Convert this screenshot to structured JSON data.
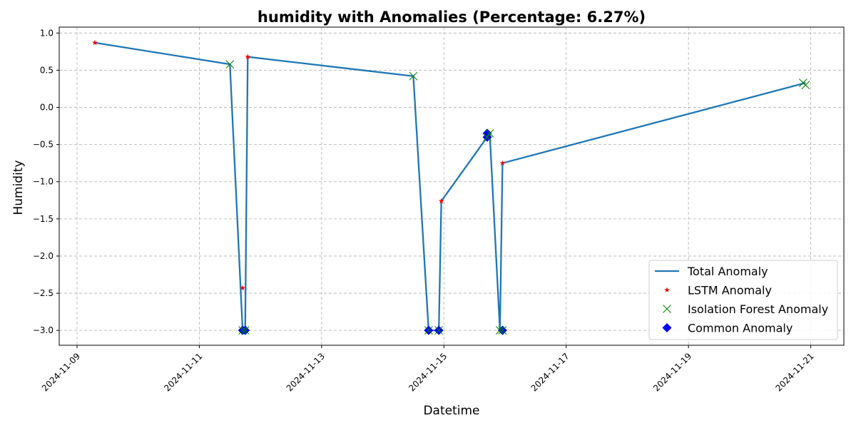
{
  "chart_data": {
    "type": "line",
    "title": "humidity with Anomalies (Percentage: 6.27%)",
    "xlabel": "Datetime",
    "ylabel": "Humidity",
    "xlim": [
      "2024-11-08T17:00",
      "2024-11-21T13:00"
    ],
    "ylim": [
      -3.2,
      1.08
    ],
    "x_ticks": [
      "2024-11-09",
      "2024-11-11",
      "2024-11-13",
      "2024-11-15",
      "2024-11-17",
      "2024-11-19",
      "2024-11-21"
    ],
    "y_ticks": [
      1.0,
      0.5,
      0.0,
      -0.5,
      -1.0,
      -1.5,
      -2.0,
      -2.5,
      -3.0
    ],
    "y_tick_labels": [
      "1.0",
      "0.5",
      "0.0",
      "−0.5",
      "−1.0",
      "−1.5",
      "−2.0",
      "−2.5",
      "−3.0"
    ],
    "grid": true,
    "legend_position": "lower-right",
    "series": [
      {
        "name": "Total Anomaly",
        "kind": "line",
        "color": "#1f77b4",
        "x": [
          "2024-11-09T07:00",
          "2024-11-11T12:00",
          "2024-11-11T17:00",
          "2024-11-11T18:00",
          "2024-11-11T19:00",
          "2024-11-14T12:00",
          "2024-11-14T18:00",
          "2024-11-14T22:00",
          "2024-11-14T23:00",
          "2024-11-15T17:00",
          "2024-11-15T18:00",
          "2024-11-15T22:00",
          "2024-11-15T23:00",
          "2024-11-20T22:00"
        ],
        "y": [
          0.87,
          0.58,
          -3.0,
          -3.0,
          0.68,
          0.42,
          -3.0,
          -3.0,
          -1.26,
          -0.4,
          -0.35,
          -3.0,
          -0.75,
          0.33
        ]
      },
      {
        "name": "LSTM Anomaly",
        "kind": "star",
        "color": "#ff0000",
        "x": [
          "2024-11-09T07:00",
          "2024-11-11T17:00",
          "2024-11-11T19:00",
          "2024-11-14T23:00",
          "2024-11-15T23:00"
        ],
        "y": [
          0.87,
          -2.43,
          0.68,
          -1.26,
          -0.75
        ]
      },
      {
        "name": "Isolation Forest Anomaly",
        "kind": "x",
        "color": "#008000",
        "x": [
          "2024-11-11T12:00",
          "2024-11-11T17:00",
          "2024-11-11T18:00",
          "2024-11-14T12:00",
          "2024-11-14T18:00",
          "2024-11-14T22:00",
          "2024-11-15T17:00",
          "2024-11-15T18:00",
          "2024-11-15T22:00",
          "2024-11-15T23:00",
          "2024-11-20T21:00",
          "2024-11-20T22:00"
        ],
        "y": [
          0.58,
          -3.0,
          -3.0,
          0.42,
          -3.0,
          -3.0,
          -0.4,
          -0.35,
          -3.0,
          -3.0,
          0.33,
          0.3
        ]
      },
      {
        "name": "Common Anomaly",
        "kind": "diamond",
        "color": "#0000ff",
        "x": [
          "2024-11-11T17:00",
          "2024-11-11T18:00",
          "2024-11-14T18:00",
          "2024-11-14T22:00",
          "2024-11-15T17:00",
          "2024-11-15T17:00",
          "2024-11-15T23:00"
        ],
        "y": [
          -3.0,
          -3.0,
          -3.0,
          -3.0,
          -0.35,
          -0.4,
          -3.0
        ]
      }
    ]
  }
}
